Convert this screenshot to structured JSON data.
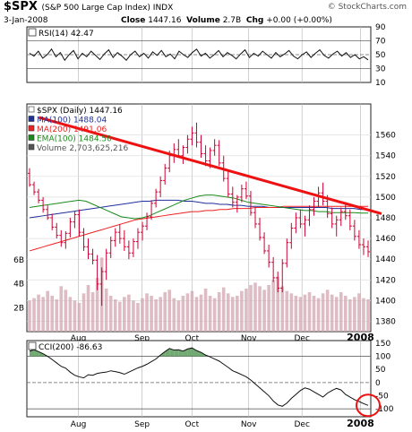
{
  "header": {
    "symbol": "$SPX",
    "name": "(S&P 500 Large Cap Index)",
    "exchange": "INDX",
    "copyright": "© StockCharts.com",
    "date": "3-Jan-2008",
    "close_label": "Close",
    "close_value": "1447.16",
    "volume_label": "Volume",
    "volume_value": "2.7B",
    "chg_label": "Chg",
    "chg_value": "+0.00 (+0.00%)"
  },
  "colors": {
    "price_bar": "#cc0033",
    "ma100": "#1f2f9a",
    "ma200": "#ee2020",
    "ema100": "#1a8a1a",
    "trendline": "#ee1111",
    "volume": "#d2a6b0",
    "cci_fill": "#5a9a5a",
    "rsi_line": "#111111"
  },
  "chart_data": [
    {
      "type": "line",
      "panel": "RSI",
      "title": "RSI(14) 42.47",
      "y_ticks": [
        10,
        30,
        50,
        70,
        90
      ],
      "ylim": [
        10,
        90
      ],
      "reference_lines": [
        30,
        50,
        70
      ],
      "series": [
        {
          "name": "RSI(14)",
          "values": [
            52,
            48,
            55,
            45,
            50,
            58,
            47,
            53,
            42,
            50,
            56,
            44,
            52,
            47,
            55,
            49,
            43,
            51,
            57,
            46,
            53,
            48,
            42,
            50,
            55,
            47,
            52,
            45,
            54,
            49,
            56,
            47,
            51,
            44,
            55,
            50,
            46,
            53,
            58,
            48,
            52,
            45,
            50,
            56,
            47,
            53,
            49,
            44,
            51,
            57,
            46,
            52,
            48,
            55,
            50,
            45,
            53,
            47,
            51,
            56,
            48,
            44,
            50,
            54,
            46,
            52,
            57,
            49,
            45,
            51,
            55,
            48,
            53,
            46,
            50,
            44,
            47,
            42.47
          ]
        }
      ]
    },
    {
      "type": "line",
      "panel": "Price",
      "title": "$SPX (Daily) 1447.16",
      "x_ticks": [
        "Aug",
        "Sep",
        "Oct",
        "Nov",
        "Dec",
        "2008"
      ],
      "y_ticks": [
        1380,
        1400,
        1420,
        1440,
        1460,
        1480,
        1500,
        1520,
        1540,
        1560
      ],
      "ylim": [
        1370,
        1590
      ],
      "volume_ticks": [
        "2B",
        "4B",
        "6B"
      ],
      "legend": [
        "$SPX (Daily) 1447.16",
        "MA(100) 1488.04",
        "MA(200) 1491.06",
        "EMA(100) 1484.50",
        "Volume 2,703,625,216"
      ],
      "price_bars": [
        [
          1523,
          1528,
          1510,
          1512
        ],
        [
          1512,
          1515,
          1502,
          1505
        ],
        [
          1505,
          1508,
          1494,
          1497
        ],
        [
          1497,
          1500,
          1485,
          1488
        ],
        [
          1488,
          1492,
          1478,
          1480
        ],
        [
          1480,
          1484,
          1468,
          1471
        ],
        [
          1471,
          1475,
          1460,
          1463
        ],
        [
          1463,
          1468,
          1452,
          1456
        ],
        [
          1456,
          1467,
          1450,
          1465
        ],
        [
          1465,
          1480,
          1461,
          1476
        ],
        [
          1476,
          1486,
          1470,
          1483
        ],
        [
          1483,
          1488,
          1462,
          1466
        ],
        [
          1466,
          1470,
          1448,
          1452
        ],
        [
          1452,
          1460,
          1440,
          1445
        ],
        [
          1445,
          1450,
          1435,
          1439
        ],
        [
          1439,
          1444,
          1410,
          1416
        ],
        [
          1416,
          1432,
          1395,
          1428
        ],
        [
          1428,
          1450,
          1420,
          1446
        ],
        [
          1446,
          1462,
          1441,
          1458
        ],
        [
          1458,
          1470,
          1452,
          1466
        ],
        [
          1466,
          1474,
          1455,
          1460
        ],
        [
          1460,
          1468,
          1448,
          1452
        ],
        [
          1452,
          1458,
          1440,
          1446
        ],
        [
          1446,
          1460,
          1442,
          1457
        ],
        [
          1457,
          1470,
          1450,
          1466
        ],
        [
          1466,
          1476,
          1458,
          1472
        ],
        [
          1472,
          1485,
          1468,
          1481
        ],
        [
          1481,
          1497,
          1478,
          1494
        ],
        [
          1494,
          1508,
          1490,
          1505
        ],
        [
          1505,
          1520,
          1500,
          1516
        ],
        [
          1516,
          1532,
          1512,
          1528
        ],
        [
          1528,
          1545,
          1524,
          1540
        ],
        [
          1540,
          1552,
          1533,
          1546
        ],
        [
          1546,
          1556,
          1538,
          1540
        ],
        [
          1540,
          1550,
          1532,
          1548
        ],
        [
          1548,
          1560,
          1542,
          1556
        ],
        [
          1556,
          1568,
          1550,
          1562
        ],
        [
          1562,
          1572,
          1548,
          1553
        ],
        [
          1553,
          1560,
          1538,
          1542
        ],
        [
          1542,
          1550,
          1530,
          1535
        ],
        [
          1535,
          1548,
          1528,
          1545
        ],
        [
          1545,
          1556,
          1540,
          1550
        ],
        [
          1550,
          1555,
          1530,
          1533
        ],
        [
          1533,
          1540,
          1515,
          1518
        ],
        [
          1518,
          1525,
          1500,
          1503
        ],
        [
          1503,
          1510,
          1490,
          1495
        ],
        [
          1495,
          1502,
          1485,
          1500
        ],
        [
          1500,
          1512,
          1495,
          1508
        ],
        [
          1508,
          1515,
          1498,
          1501
        ],
        [
          1501,
          1506,
          1482,
          1485
        ],
        [
          1485,
          1490,
          1470,
          1474
        ],
        [
          1474,
          1480,
          1458,
          1461
        ],
        [
          1461,
          1466,
          1445,
          1448
        ],
        [
          1448,
          1454,
          1432,
          1437
        ],
        [
          1437,
          1442,
          1418,
          1422
        ],
        [
          1422,
          1428,
          1408,
          1412
        ],
        [
          1412,
          1440,
          1408,
          1436
        ],
        [
          1436,
          1460,
          1432,
          1456
        ],
        [
          1456,
          1475,
          1450,
          1470
        ],
        [
          1470,
          1485,
          1465,
          1480
        ],
        [
          1480,
          1488,
          1470,
          1474
        ],
        [
          1474,
          1482,
          1462,
          1478
        ],
        [
          1478,
          1492,
          1472,
          1488
        ],
        [
          1488,
          1500,
          1482,
          1496
        ],
        [
          1496,
          1510,
          1490,
          1504
        ],
        [
          1504,
          1514,
          1492,
          1496
        ],
        [
          1496,
          1502,
          1480,
          1484
        ],
        [
          1484,
          1490,
          1470,
          1474
        ],
        [
          1474,
          1482,
          1462,
          1478
        ],
        [
          1478,
          1490,
          1472,
          1486
        ],
        [
          1486,
          1495,
          1478,
          1482
        ],
        [
          1482,
          1488,
          1468,
          1472
        ],
        [
          1472,
          1478,
          1458,
          1462
        ],
        [
          1462,
          1468,
          1450,
          1454
        ],
        [
          1454,
          1460,
          1444,
          1452
        ],
        [
          1452,
          1458,
          1442,
          1447.16
        ]
      ],
      "series": [
        {
          "name": "MA(100) 1488.04",
          "values": [
            1480,
            1481,
            1482,
            1483,
            1484,
            1485,
            1486,
            1487,
            1488,
            1489,
            1490,
            1491,
            1492,
            1493,
            1494,
            1495,
            1496,
            1496,
            1497,
            1497,
            1497,
            1497,
            1496,
            1496,
            1495,
            1494,
            1494,
            1493,
            1493,
            1492,
            1492,
            1491,
            1491,
            1491,
            1490,
            1490,
            1490,
            1490,
            1490,
            1490,
            1490,
            1490,
            1490,
            1489,
            1489,
            1489,
            1489,
            1488,
            1488
          ]
        },
        {
          "name": "MA(200) 1491.06",
          "values": [
            1448,
            1450,
            1452,
            1454,
            1456,
            1458,
            1460,
            1462,
            1464,
            1466,
            1468,
            1470,
            1472,
            1474,
            1476,
            1478,
            1479,
            1480,
            1481,
            1482,
            1483,
            1484,
            1485,
            1486,
            1486,
            1487,
            1487,
            1488,
            1488,
            1489,
            1489,
            1489,
            1490,
            1490,
            1490,
            1490,
            1491,
            1491,
            1491,
            1491,
            1491,
            1491,
            1491,
            1491,
            1491,
            1491,
            1491,
            1491,
            1491.06
          ]
        },
        {
          "name": "EMA(100) 1484.50",
          "values": [
            1490,
            1491,
            1492,
            1493,
            1494,
            1495,
            1496,
            1497,
            1496,
            1493,
            1490,
            1487,
            1484,
            1481,
            1480,
            1479,
            1480,
            1482,
            1485,
            1488,
            1491,
            1494,
            1497,
            1499,
            1501,
            1502,
            1502,
            1501,
            1500,
            1499,
            1497,
            1495,
            1494,
            1493,
            1492,
            1491,
            1490,
            1489,
            1488,
            1487,
            1487,
            1486,
            1486,
            1485,
            1485,
            1485,
            1485,
            1484.5,
            1484.5
          ]
        },
        {
          "name": "Volume 2,703,625,216",
          "values": [
            2.6,
            2.8,
            3.1,
            2.9,
            3.4,
            3.0,
            2.7,
            3.8,
            3.5,
            2.9,
            2.6,
            2.4,
            3.2,
            3.9,
            3.3,
            4.5,
            6.2,
            3.6,
            3.0,
            2.7,
            2.5,
            2.9,
            3.1,
            2.6,
            2.4,
            2.8,
            3.2,
            3.0,
            2.7,
            2.9,
            3.3,
            3.5,
            2.8,
            2.6,
            3.0,
            3.2,
            3.4,
            2.9,
            3.1,
            3.6,
            3.0,
            2.8,
            3.3,
            3.7,
            3.2,
            2.9,
            3.0,
            3.4,
            3.6,
            3.9,
            4.1,
            3.8,
            3.5,
            3.9,
            4.3,
            4.6,
            3.8,
            3.4,
            3.2,
            3.0,
            2.9,
            3.1,
            3.3,
            3.0,
            2.8,
            3.2,
            3.5,
            3.1,
            2.9,
            3.3,
            3.0,
            2.7,
            2.9,
            3.2,
            2.8,
            2.7
          ]
        }
      ],
      "trendline": [
        [
          1,
          1577
        ],
        [
          33,
          1490
        ]
      ],
      "highlight": "circle"
    },
    {
      "type": "line",
      "panel": "CCI",
      "title": "CCI(200) -86.63",
      "x_ticks": [
        "Aug",
        "Sep",
        "Oct",
        "Nov",
        "Dec",
        "2008"
      ],
      "y_ticks": [
        -100,
        -50,
        0,
        50,
        100,
        150
      ],
      "ylim": [
        -130,
        160
      ],
      "reference_lines": [
        -100,
        0,
        100
      ],
      "series": [
        {
          "name": "CCI(200)",
          "values": [
            120,
            125,
            118,
            110,
            100,
            88,
            75,
            62,
            55,
            40,
            28,
            22,
            18,
            30,
            28,
            35,
            38,
            40,
            45,
            42,
            38,
            32,
            40,
            48,
            56,
            62,
            70,
            80,
            90,
            105,
            118,
            130,
            124,
            125,
            120,
            128,
            132,
            122,
            115,
            105,
            98,
            90,
            82,
            70,
            58,
            45,
            38,
            30,
            22,
            10,
            -5,
            -20,
            -35,
            -50,
            -70,
            -85,
            -90,
            -78,
            -60,
            -45,
            -30,
            -20,
            -25,
            -35,
            -45,
            -55,
            -40,
            -30,
            -22,
            -28,
            -45,
            -55,
            -65,
            -72,
            -80,
            -86.63
          ]
        }
      ]
    }
  ]
}
